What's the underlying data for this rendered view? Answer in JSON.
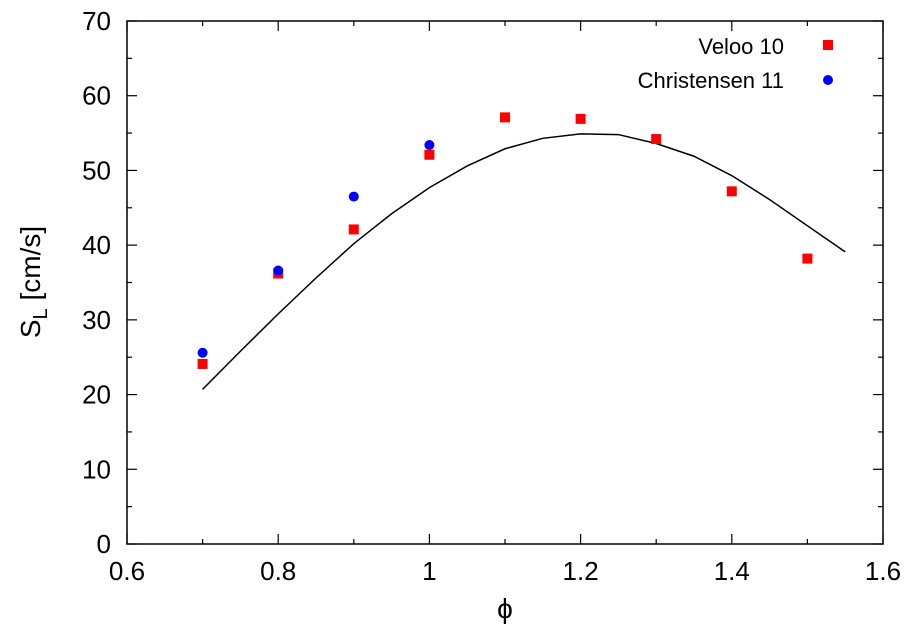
{
  "chart_data": {
    "type": "scatter",
    "title": "",
    "xlabel": "ϕ",
    "ylabel_main": "S",
    "ylabel_sub": "L",
    "ylabel_unit": " [cm/s]",
    "xlim": [
      0.6,
      1.6
    ],
    "ylim": [
      0,
      70
    ],
    "x_ticks": [
      0.6,
      0.8,
      1,
      1.2,
      1.4,
      1.6
    ],
    "x_tick_labels": [
      "0.6",
      "0.8",
      "1",
      "1.2",
      "1.4",
      "1.6"
    ],
    "y_ticks": [
      0,
      10,
      20,
      30,
      40,
      50,
      60,
      70
    ],
    "y_tick_labels": [
      "0",
      "10",
      "20",
      "30",
      "40",
      "50",
      "60",
      "70"
    ],
    "grid": false,
    "legend_position": "top-right",
    "series": [
      {
        "name": "Veloo 10",
        "kind": "points",
        "marker": "square",
        "color": "#ff0000",
        "x": [
          0.7,
          0.8,
          0.9,
          1.0,
          1.1,
          1.2,
          1.3,
          1.4,
          1.5
        ],
        "y": [
          24.1,
          36.2,
          42.1,
          52.1,
          57.1,
          56.9,
          54.2,
          47.2,
          38.2
        ]
      },
      {
        "name": "Christensen 11",
        "kind": "points",
        "marker": "circle",
        "color": "#0000ff",
        "x": [
          0.7,
          0.8,
          0.9,
          1.0
        ],
        "y": [
          25.6,
          36.6,
          46.5,
          53.4
        ]
      },
      {
        "kind": "line",
        "color": "#000000",
        "x": [
          0.7,
          0.75,
          0.8,
          0.85,
          0.9,
          0.95,
          1.0,
          1.05,
          1.1,
          1.15,
          1.2,
          1.25,
          1.3,
          1.35,
          1.4,
          1.45,
          1.5,
          1.55
        ],
        "y": [
          20.7,
          25.8,
          30.8,
          35.6,
          40.2,
          44.2,
          47.7,
          50.6,
          52.9,
          54.3,
          54.9,
          54.8,
          53.6,
          51.9,
          49.3,
          46.1,
          42.6,
          39.1
        ]
      }
    ]
  }
}
